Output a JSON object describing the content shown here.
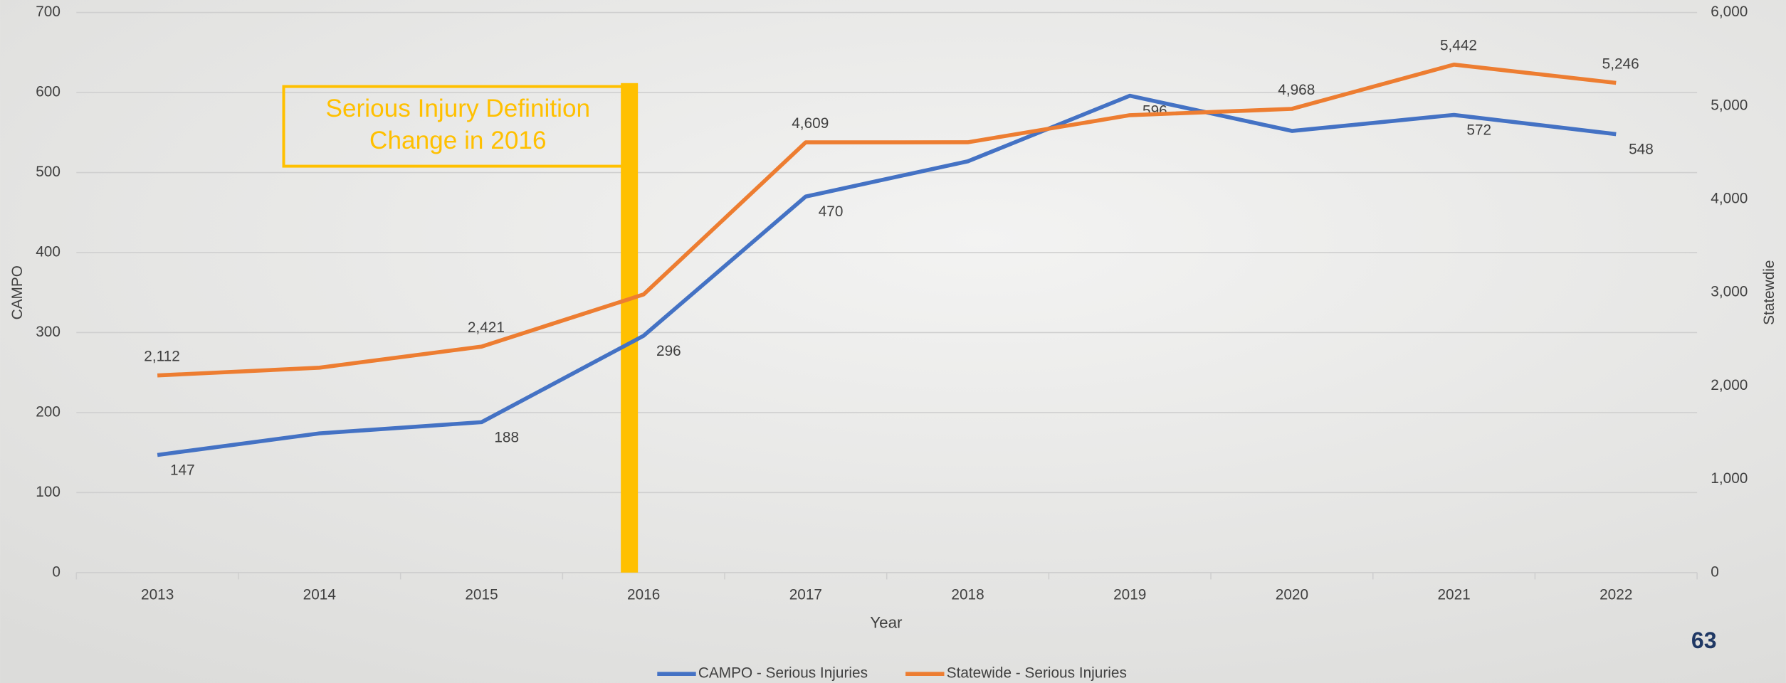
{
  "chart_data": {
    "type": "line",
    "x_label": "Year",
    "y_label": "CAMPO",
    "y2_label": "Statewdie",
    "annotation": "Serious Injury Definition Change in 2016",
    "page_number": "63",
    "categories": [
      "2013",
      "2014",
      "2015",
      "2016",
      "2017",
      "2018",
      "2019",
      "2020",
      "2021",
      "2022"
    ],
    "series": [
      {
        "name": "CAMPO - Serious Injuries",
        "color": "#4472c4",
        "values": [
          147,
          174,
          188,
          296,
          470,
          514,
          596,
          552,
          572,
          548
        ],
        "value_labels": [
          "147",
          null,
          "188",
          "296",
          "470",
          null,
          "596",
          null,
          "572",
          "548"
        ]
      },
      {
        "name": "Statewide - Serious Injuries",
        "color": "#ed7d31",
        "axis": "y2",
        "values": [
          2112,
          2195,
          2421,
          2980,
          4609,
          4610,
          4900,
          4968,
          5442,
          5246
        ],
        "value_labels": [
          "2,112",
          null,
          "2,421",
          null,
          "4,609",
          null,
          null,
          "4,968",
          "5,442",
          "5,246"
        ]
      }
    ],
    "ylim": [
      0,
      700
    ],
    "yticks": [
      0,
      100,
      200,
      300,
      400,
      500,
      600,
      700
    ],
    "y2lim": [
      0,
      6000
    ],
    "y2ticks": [
      0,
      {
        "value": 1000,
        "label": "1,000"
      },
      {
        "value": 2000,
        "label": "2,000"
      },
      {
        "value": 3000,
        "label": "3,000"
      },
      {
        "value": 4000,
        "label": "4,000"
      },
      {
        "value": 5000,
        "label": "5,000"
      },
      {
        "value": 6000,
        "label": "6,000"
      }
    ],
    "grid": true,
    "legend": "bottom",
    "annotation_color": "#ffc000"
  }
}
